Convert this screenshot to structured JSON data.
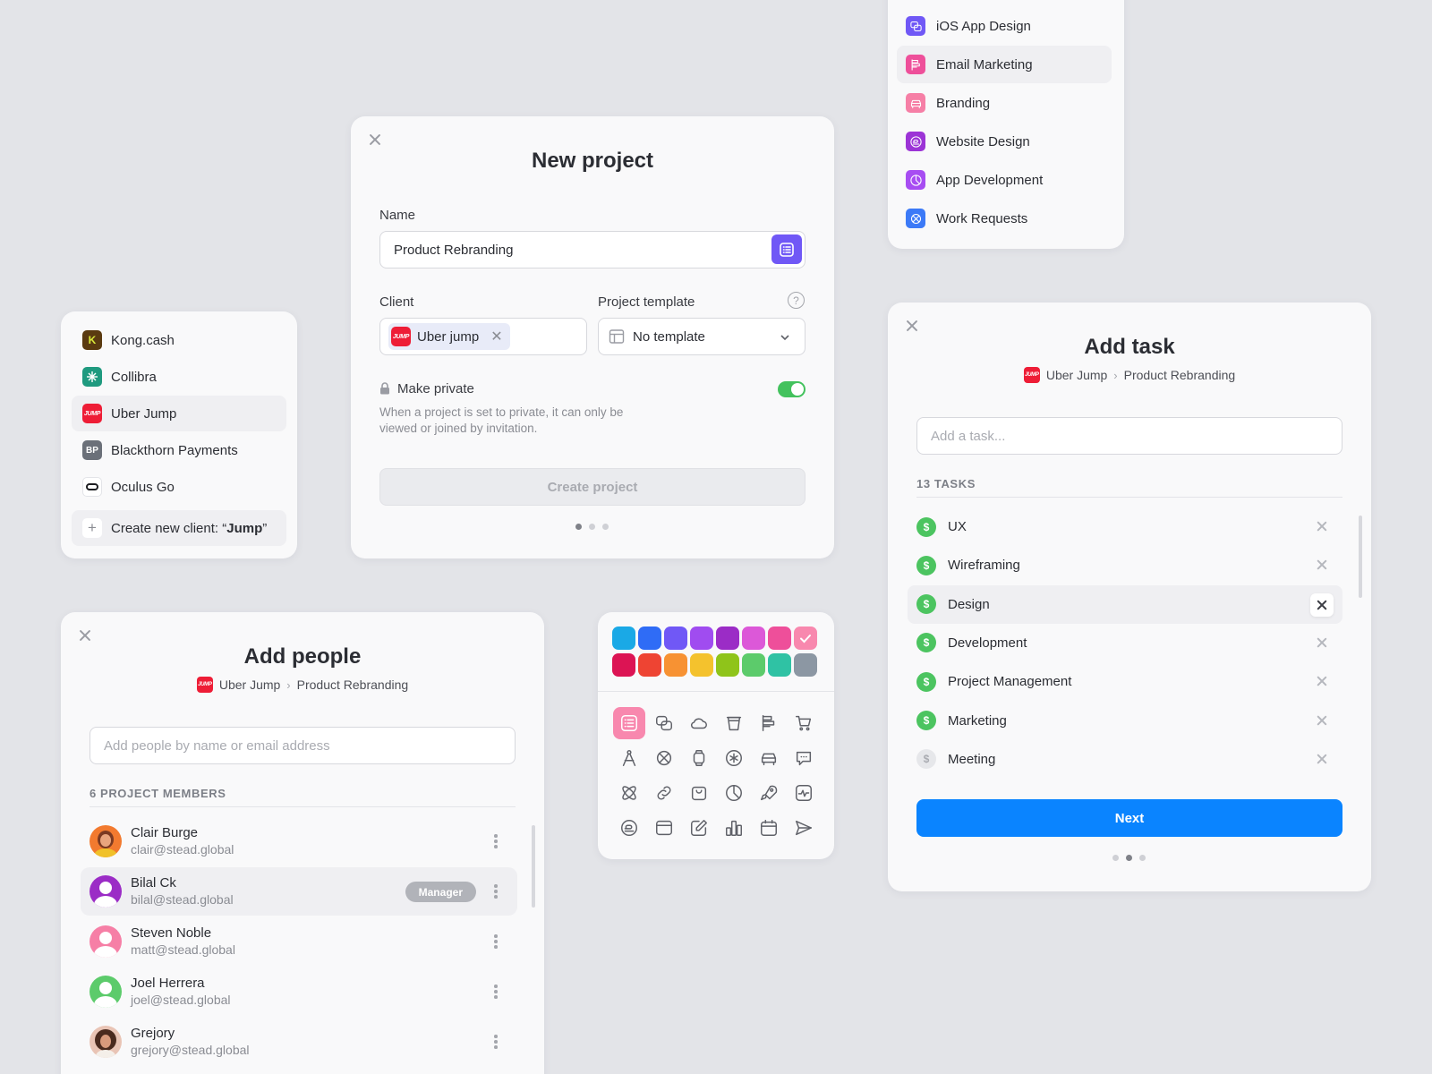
{
  "colors": {
    "accent_purple": "#7058f6",
    "toggle_green": "#43c25d",
    "primary_blue": "#0a84ff",
    "jump_red": "#ee1d36"
  },
  "clients_dropdown": {
    "items": [
      {
        "label": "Kong.cash",
        "logo_text": "K",
        "color": "#5a3a10",
        "icon": "kong-logo"
      },
      {
        "label": "Collibra",
        "logo_text": "",
        "color": "#1f9a7f",
        "icon": "collibra-logo"
      },
      {
        "label": "Uber Jump",
        "logo_text": "JUMP",
        "color": "#ee1d36",
        "icon": "jump-logo",
        "selected": true
      },
      {
        "label": "Blackthorn Payments",
        "logo_text": "BP",
        "color": "#6b7079",
        "icon": "blackthorn-logo"
      },
      {
        "label": "Oculus Go",
        "logo_text": "",
        "color": "#ffffff",
        "icon": "oculus-logo"
      }
    ],
    "create_prefix": "Create new client: “",
    "create_query": "Jump",
    "create_suffix": "”"
  },
  "new_project": {
    "title": "New project",
    "name_label": "Name",
    "name_value": "Product Rebranding",
    "client_label": "Client",
    "client_chip": "Uber jump",
    "client_logo": "JUMP",
    "template_label": "Project template",
    "template_value": "No template",
    "private_label": "Make private",
    "private_on": true,
    "private_desc_1": "When a project is set to private, it can only be",
    "private_desc_2": "viewed or joined by invitation.",
    "create_button": "Create project",
    "step": 1
  },
  "project_types": {
    "items": [
      {
        "label": "iOS App Design",
        "color": "#7058f6",
        "icon": "chat-icon"
      },
      {
        "label": "Email Marketing",
        "color": "#ee4f9a",
        "icon": "flag-icon",
        "selected": true
      },
      {
        "label": "Branding",
        "color": "#f67fa6",
        "icon": "car-icon"
      },
      {
        "label": "Website Design",
        "color": "#9c34d6",
        "icon": "chat-bubble-icon"
      },
      {
        "label": "App Development",
        "color": "#a74df2",
        "icon": "pie-icon"
      },
      {
        "label": "Work Requests",
        "color": "#3c7af7",
        "icon": "satellite-icon"
      }
    ]
  },
  "add_task": {
    "title": "Add task",
    "crumb_client": "Uber Jump",
    "crumb_project": "Product Rebranding",
    "crumb_sep": "›",
    "logo": "JUMP",
    "input_placeholder": "Add a task...",
    "tasks_heading": "13 TASKS",
    "tasks": [
      {
        "label": "UX",
        "billable": true
      },
      {
        "label": "Wireframing",
        "billable": true
      },
      {
        "label": "Design",
        "billable": true,
        "selected": true
      },
      {
        "label": "Development",
        "billable": true
      },
      {
        "label": "Project Management",
        "billable": true
      },
      {
        "label": "Marketing",
        "billable": true
      },
      {
        "label": "Meeting",
        "billable": false
      }
    ],
    "next_button": "Next",
    "step": 2
  },
  "add_people": {
    "title": "Add people",
    "crumb_client": "Uber Jump",
    "crumb_project": "Product Rebranding",
    "crumb_sep": "›",
    "logo": "JUMP",
    "input_placeholder": "Add people by name or email address",
    "members_heading": "6 PROJECT MEMBERS",
    "members": [
      {
        "name": "Clair Burge",
        "email": "clair@stead.global",
        "avatar": "photo-orange"
      },
      {
        "name": "Bilal Ck",
        "email": "bilal@stead.global",
        "avatar": "purple",
        "badge": "Manager",
        "selected": true
      },
      {
        "name": "Steven Noble",
        "email": "matt@stead.global",
        "avatar": "pink"
      },
      {
        "name": "Joel Herrera",
        "email": "joel@stead.global",
        "avatar": "green"
      },
      {
        "name": "Grejory",
        "email": "grejory@stead.global",
        "avatar": "photo-curly"
      }
    ]
  },
  "icon_picker": {
    "swatches": [
      "#1aa9e6",
      "#2f6cf6",
      "#7058f6",
      "#a04cf0",
      "#9b2cc6",
      "#dc58d8",
      "#ee4f9a",
      "#f888ae",
      "#dc1454",
      "#ee4433",
      "#f79233",
      "#f4c22d",
      "#8fc41a",
      "#5ccb6b",
      "#2fc2a4",
      "#8c97a3"
    ],
    "selected_swatch": 7,
    "icons": [
      "list-icon",
      "chat-icon",
      "cloud-icon",
      "cup-icon",
      "flag-icon",
      "cart-icon",
      "compass-icon",
      "satellite-icon",
      "watch-icon",
      "asterisk-icon",
      "car-icon",
      "chat-dots-icon",
      "atom-icon",
      "link-icon",
      "bag-icon",
      "pie-icon",
      "rocket-icon",
      "pulse-icon",
      "chat-bubble-icon",
      "browser-icon",
      "edit-icon",
      "bar-chart-icon",
      "calendar-icon",
      "send-icon"
    ],
    "selected_icon": 0
  }
}
